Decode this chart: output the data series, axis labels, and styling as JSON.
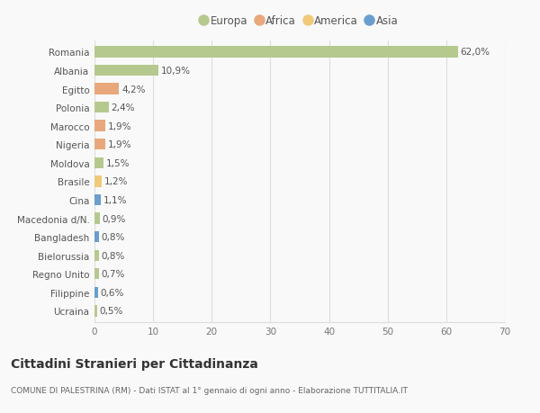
{
  "categories": [
    "Romania",
    "Albania",
    "Egitto",
    "Polonia",
    "Marocco",
    "Nigeria",
    "Moldova",
    "Brasile",
    "Cina",
    "Macedonia d/N.",
    "Bangladesh",
    "Bielorussia",
    "Regno Unito",
    "Filippine",
    "Ucraina"
  ],
  "values": [
    62.0,
    10.9,
    4.2,
    2.4,
    1.9,
    1.9,
    1.5,
    1.2,
    1.1,
    0.9,
    0.8,
    0.8,
    0.7,
    0.6,
    0.5
  ],
  "labels": [
    "62,0%",
    "10,9%",
    "4,2%",
    "2,4%",
    "1,9%",
    "1,9%",
    "1,5%",
    "1,2%",
    "1,1%",
    "0,9%",
    "0,8%",
    "0,8%",
    "0,7%",
    "0,6%",
    "0,5%"
  ],
  "colors": [
    "#b5c98e",
    "#b5c98e",
    "#e8a87c",
    "#b5c98e",
    "#e8a87c",
    "#e8a87c",
    "#b5c98e",
    "#f0c97a",
    "#6a9ecf",
    "#b5c98e",
    "#6a9ecf",
    "#b5c98e",
    "#b5c98e",
    "#6a9ecf",
    "#b5c98e"
  ],
  "legend_labels": [
    "Europa",
    "Africa",
    "America",
    "Asia"
  ],
  "legend_colors": [
    "#b5c98e",
    "#e8a87c",
    "#f0c97a",
    "#6a9ecf"
  ],
  "xlim": [
    0,
    70
  ],
  "xticks": [
    0,
    10,
    20,
    30,
    40,
    50,
    60,
    70
  ],
  "title": "Cittadini Stranieri per Cittadinanza",
  "subtitle": "COMUNE DI PALESTRINA (RM) - Dati ISTAT al 1° gennaio di ogni anno - Elaborazione TUTTITALIA.IT",
  "background_color": "#f9f9f9",
  "grid_color": "#dddddd",
  "bar_height": 0.6,
  "label_fontsize": 7.5,
  "tick_fontsize": 7.5,
  "title_fontsize": 10,
  "subtitle_fontsize": 6.5,
  "legend_fontsize": 8.5
}
